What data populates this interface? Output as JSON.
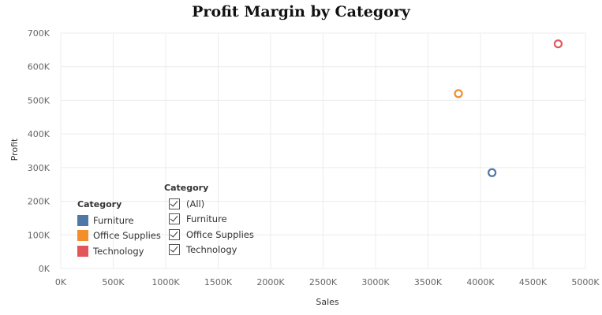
{
  "chart_data": {
    "type": "scatter",
    "title": "Profit Margin by Category",
    "xlabel": "Sales",
    "ylabel": "Profit",
    "xlim": [
      0,
      5000000
    ],
    "ylim": [
      0,
      700000
    ],
    "x_ticks": [
      "0K",
      "500K",
      "1000K",
      "1500K",
      "2000K",
      "2500K",
      "3000K",
      "3500K",
      "4000K",
      "4500K",
      "5000K"
    ],
    "y_ticks": [
      "0K",
      "100K",
      "200K",
      "300K",
      "400K",
      "500K",
      "600K",
      "700K"
    ],
    "grid": true,
    "marker": "hollow-circle",
    "points": [
      {
        "category": "Furniture",
        "x": 4110000,
        "y": 285000,
        "color": "#4e79a7"
      },
      {
        "category": "Office Supplies",
        "x": 3790000,
        "y": 520000,
        "color": "#f28e2b"
      },
      {
        "category": "Technology",
        "x": 4740000,
        "y": 668000,
        "color": "#e15759"
      }
    ]
  },
  "color_legend": {
    "title": "Category",
    "items": [
      {
        "label": "Furniture",
        "color": "#4e79a7"
      },
      {
        "label": "Office Supplies",
        "color": "#f28e2b"
      },
      {
        "label": "Technology",
        "color": "#e15759"
      }
    ]
  },
  "filter_legend": {
    "title": "Category",
    "items": [
      {
        "label": "(All)",
        "checked": true
      },
      {
        "label": "Furniture",
        "checked": true
      },
      {
        "label": "Office Supplies",
        "checked": true
      },
      {
        "label": "Technology",
        "checked": true
      }
    ]
  }
}
